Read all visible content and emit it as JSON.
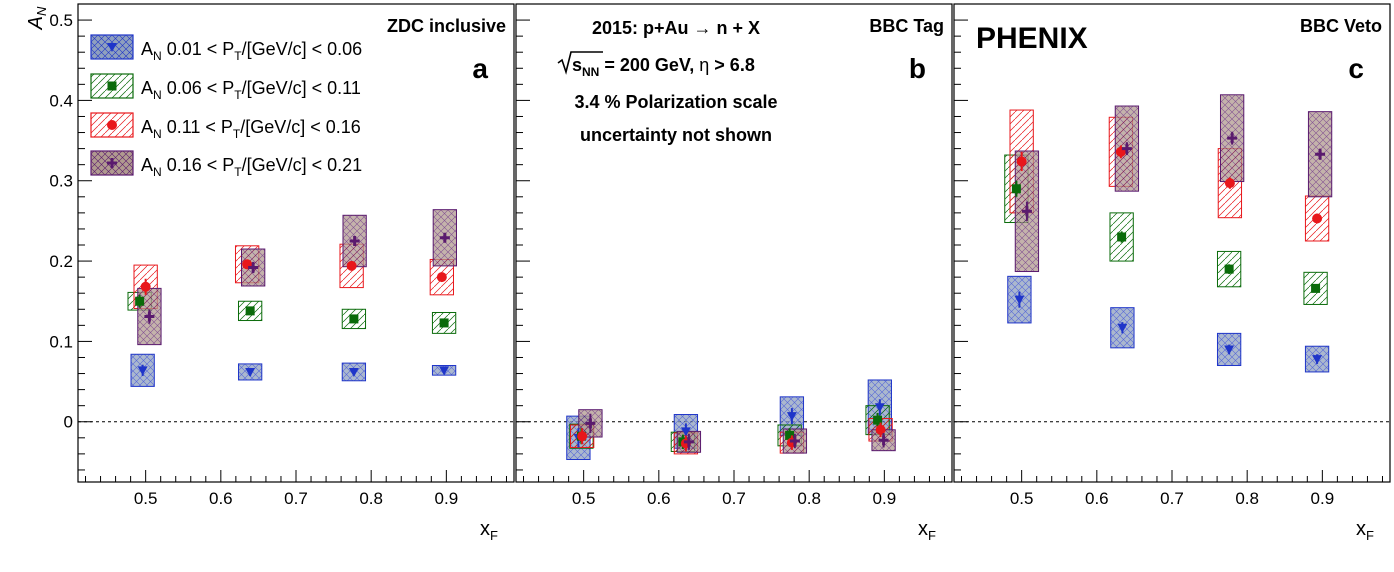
{
  "figure": {
    "experiment_label": "PHENIX",
    "y_axis_label": "A",
    "y_axis_label_sub": "N",
    "x_axis_label": "x",
    "x_axis_label_sub": "F",
    "info_lines": [
      "2015: p+Au → n + X",
      "√s_NN = 200 GeV, η > 6.8",
      "3.4 % Polarization scale",
      "uncertainty not shown"
    ],
    "legend": [
      {
        "label": "A_N 0.01 < P_T/[GeV/c] < 0.06",
        "color": "#1f35c9",
        "marker": "triangle-down",
        "box_color": "#1f35c9"
      },
      {
        "label": "A_N 0.06 < P_T/[GeV/c] < 0.11",
        "color": "#0a6b0a",
        "marker": "square",
        "box_color": "#0a6b0a"
      },
      {
        "label": "A_N 0.11 < P_T/[GeV/c] < 0.16",
        "color": "#e8171b",
        "marker": "circle",
        "box_color": "#e8171b"
      },
      {
        "label": "A_N 0.16 < P_T/[GeV/c] < 0.21",
        "color": "#5a1a6e",
        "marker": "cross",
        "box_color": "#5a1a6e"
      }
    ]
  },
  "chart_data": [
    {
      "type": "scatter",
      "panel_letter": "a",
      "title": "ZDC inclusive",
      "xlabel": "x_F",
      "ylabel": "A_N",
      "xlim": [
        0.41,
        0.99
      ],
      "ylim": [
        -0.075,
        0.52
      ],
      "xticks": [
        0.5,
        0.6,
        0.7,
        0.8,
        0.9
      ],
      "yticks": [
        0,
        0.1,
        0.2,
        0.3,
        0.4,
        0.5
      ],
      "reference_line": 0,
      "series": [
        {
          "name": "A_N 0.01 < P_T/[GeV/c] < 0.06",
          "points": [
            {
              "x": 0.496,
              "y": 0.064,
              "err": 0.007,
              "sys": 0.02,
              "w": 0.031
            },
            {
              "x": 0.639,
              "y": 0.062,
              "err": 0.005,
              "sys": 0.01,
              "w": 0.031
            },
            {
              "x": 0.777,
              "y": 0.062,
              "err": 0.004,
              "sys": 0.011,
              "w": 0.031
            },
            {
              "x": 0.897,
              "y": 0.064,
              "err": 0.004,
              "sys": 0.006,
              "w": 0.031
            }
          ]
        },
        {
          "name": "A_N 0.06 < P_T/[GeV/c] < 0.11",
          "points": [
            {
              "x": 0.492,
              "y": 0.15,
              "err": 0.008,
              "sys": 0.011,
              "w": 0.031
            },
            {
              "x": 0.639,
              "y": 0.138,
              "err": 0.005,
              "sys": 0.012,
              "w": 0.031
            },
            {
              "x": 0.777,
              "y": 0.128,
              "err": 0.004,
              "sys": 0.012,
              "w": 0.031
            },
            {
              "x": 0.897,
              "y": 0.123,
              "err": 0.004,
              "sys": 0.013,
              "w": 0.031
            }
          ]
        },
        {
          "name": "A_N 0.11 < P_T/[GeV/c] < 0.16",
          "points": [
            {
              "x": 0.5,
              "y": 0.168,
              "err": 0.01,
              "sys": 0.027,
              "w": 0.031
            },
            {
              "x": 0.635,
              "y": 0.196,
              "err": 0.006,
              "sys": 0.023,
              "w": 0.031
            },
            {
              "x": 0.774,
              "y": 0.194,
              "err": 0.005,
              "sys": 0.027,
              "w": 0.031
            },
            {
              "x": 0.894,
              "y": 0.18,
              "err": 0.004,
              "sys": 0.022,
              "w": 0.031
            }
          ]
        },
        {
          "name": "A_N 0.16 < P_T/[GeV/c] < 0.21",
          "points": [
            {
              "x": 0.505,
              "y": 0.131,
              "err": 0.009,
              "sys": 0.035,
              "w": 0.031
            },
            {
              "x": 0.643,
              "y": 0.192,
              "err": 0.007,
              "sys": 0.023,
              "w": 0.031
            },
            {
              "x": 0.778,
              "y": 0.225,
              "err": 0.005,
              "sys": 0.032,
              "w": 0.031
            },
            {
              "x": 0.898,
              "y": 0.229,
              "err": 0.004,
              "sys": 0.035,
              "w": 0.031
            }
          ]
        }
      ]
    },
    {
      "type": "scatter",
      "panel_letter": "b",
      "title": "BBC Tag",
      "xlabel": "x_F",
      "ylabel": "A_N",
      "xlim": [
        0.41,
        0.99
      ],
      "ylim": [
        -0.075,
        0.52
      ],
      "xticks": [
        0.5,
        0.6,
        0.7,
        0.8,
        0.9
      ],
      "yticks": [
        0,
        0.1,
        0.2,
        0.3,
        0.4,
        0.5
      ],
      "reference_line": 0,
      "series": [
        {
          "name": "A_N 0.01 < P_T/[GeV/c] < 0.06",
          "points": [
            {
              "x": 0.493,
              "y": -0.02,
              "err": 0.012,
              "sys": 0.027,
              "w": 0.031
            },
            {
              "x": 0.636,
              "y": -0.012,
              "err": 0.01,
              "sys": 0.021,
              "w": 0.031
            },
            {
              "x": 0.777,
              "y": 0.007,
              "err": 0.01,
              "sys": 0.024,
              "w": 0.031
            },
            {
              "x": 0.894,
              "y": 0.018,
              "err": 0.01,
              "sys": 0.034,
              "w": 0.031
            }
          ]
        },
        {
          "name": "A_N 0.06 < P_T/[GeV/c] < 0.11",
          "points": [
            {
              "x": 0.497,
              "y": -0.018,
              "err": 0.01,
              "sys": 0.015,
              "w": 0.031
            },
            {
              "x": 0.632,
              "y": -0.025,
              "err": 0.009,
              "sys": 0.012,
              "w": 0.031
            },
            {
              "x": 0.774,
              "y": -0.017,
              "err": 0.009,
              "sys": 0.013,
              "w": 0.031
            },
            {
              "x": 0.891,
              "y": 0.002,
              "err": 0.009,
              "sys": 0.018,
              "w": 0.031
            }
          ]
        },
        {
          "name": "A_N 0.11 < P_T/[GeV/c] < 0.16",
          "points": [
            {
              "x": 0.498,
              "y": -0.018,
              "err": 0.01,
              "sys": 0.014,
              "w": 0.031
            },
            {
              "x": 0.636,
              "y": -0.027,
              "err": 0.01,
              "sys": 0.013,
              "w": 0.031
            },
            {
              "x": 0.777,
              "y": -0.026,
              "err": 0.009,
              "sys": 0.013,
              "w": 0.031
            },
            {
              "x": 0.895,
              "y": -0.01,
              "err": 0.009,
              "sys": 0.014,
              "w": 0.031
            }
          ]
        },
        {
          "name": "A_N 0.16 < P_T/[GeV/c] < 0.21",
          "points": [
            {
              "x": 0.509,
              "y": -0.002,
              "err": 0.012,
              "sys": 0.017,
              "w": 0.031
            },
            {
              "x": 0.64,
              "y": -0.025,
              "err": 0.01,
              "sys": 0.013,
              "w": 0.031
            },
            {
              "x": 0.781,
              "y": -0.024,
              "err": 0.009,
              "sys": 0.015,
              "w": 0.031
            },
            {
              "x": 0.899,
              "y": -0.023,
              "err": 0.009,
              "sys": 0.013,
              "w": 0.031
            }
          ]
        }
      ]
    },
    {
      "type": "scatter",
      "panel_letter": "c",
      "title": "BBC Veto",
      "xlabel": "x_F",
      "ylabel": "A_N",
      "xlim": [
        0.41,
        0.99
      ],
      "ylim": [
        -0.075,
        0.52
      ],
      "xticks": [
        0.5,
        0.6,
        0.7,
        0.8,
        0.9
      ],
      "yticks": [
        0,
        0.1,
        0.2,
        0.3,
        0.4,
        0.5
      ],
      "reference_line": 0,
      "series": [
        {
          "name": "A_N 0.01 < P_T/[GeV/c] < 0.06",
          "points": [
            {
              "x": 0.497,
              "y": 0.152,
              "err": 0.01,
              "sys": 0.029,
              "w": 0.031
            },
            {
              "x": 0.634,
              "y": 0.117,
              "err": 0.007,
              "sys": 0.025,
              "w": 0.031
            },
            {
              "x": 0.776,
              "y": 0.09,
              "err": 0.006,
              "sys": 0.02,
              "w": 0.031
            },
            {
              "x": 0.893,
              "y": 0.078,
              "err": 0.006,
              "sys": 0.016,
              "w": 0.031
            }
          ]
        },
        {
          "name": "A_N 0.06 < P_T/[GeV/c] < 0.11",
          "points": [
            {
              "x": 0.493,
              "y": 0.29,
              "err": 0.01,
              "sys": 0.042,
              "w": 0.031
            },
            {
              "x": 0.633,
              "y": 0.23,
              "err": 0.007,
              "sys": 0.03,
              "w": 0.031
            },
            {
              "x": 0.776,
              "y": 0.19,
              "err": 0.006,
              "sys": 0.022,
              "w": 0.031
            },
            {
              "x": 0.891,
              "y": 0.166,
              "err": 0.005,
              "sys": 0.02,
              "w": 0.031
            }
          ]
        },
        {
          "name": "A_N 0.11 < P_T/[GeV/c] < 0.16",
          "points": [
            {
              "x": 0.5,
              "y": 0.324,
              "err": 0.012,
              "sys": 0.064,
              "w": 0.031
            },
            {
              "x": 0.632,
              "y": 0.336,
              "err": 0.008,
              "sys": 0.043,
              "w": 0.031
            },
            {
              "x": 0.777,
              "y": 0.297,
              "err": 0.007,
              "sys": 0.043,
              "w": 0.031
            },
            {
              "x": 0.893,
              "y": 0.253,
              "err": 0.006,
              "sys": 0.028,
              "w": 0.031
            }
          ]
        },
        {
          "name": "A_N 0.16 < P_T/[GeV/c] < 0.21",
          "points": [
            {
              "x": 0.507,
              "y": 0.262,
              "err": 0.012,
              "sys": 0.075,
              "w": 0.031
            },
            {
              "x": 0.64,
              "y": 0.34,
              "err": 0.008,
              "sys": 0.053,
              "w": 0.031
            },
            {
              "x": 0.78,
              "y": 0.353,
              "err": 0.008,
              "sys": 0.054,
              "w": 0.031
            },
            {
              "x": 0.897,
              "y": 0.333,
              "err": 0.007,
              "sys": 0.053,
              "w": 0.031
            }
          ]
        }
      ]
    }
  ]
}
